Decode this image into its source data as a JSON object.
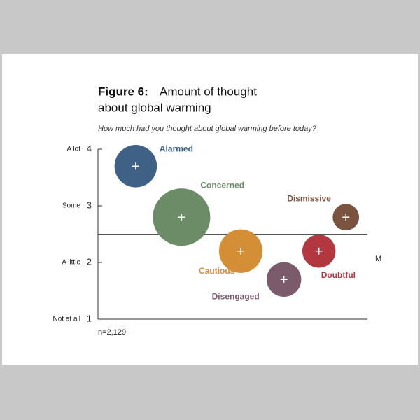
{
  "chart_data": {
    "type": "bubble",
    "title_prefix": "Figure 6:",
    "title": "Amount of thought",
    "title_line2": "about global warming",
    "subtitle": "How much had you thought about global warming before today?",
    "note": "n=2,129",
    "reference_line": 2.5,
    "reference_label": "M",
    "ylim": [
      1,
      4
    ],
    "yticks": [
      1,
      2,
      3,
      4
    ],
    "ytick_names": [
      "Not at all",
      "A little",
      "Some",
      "A lot"
    ],
    "xlim": [
      0,
      10
    ],
    "series": [
      {
        "name": "Alarmed",
        "color": "#3f6185",
        "x": [
          1.4
        ],
        "values": [
          3.7
        ],
        "sizes": [
          18
        ]
      },
      {
        "name": "Concerned",
        "color": "#6b8c67",
        "x": [
          3.1
        ],
        "values": [
          2.8
        ],
        "sizes": [
          33
        ]
      },
      {
        "name": "Cautious",
        "color": "#d48f36",
        "x": [
          5.3
        ],
        "values": [
          2.2
        ],
        "sizes": [
          19
        ]
      },
      {
        "name": "Disengaged",
        "color": "#7a5a6b",
        "x": [
          6.9
        ],
        "values": [
          1.7
        ],
        "sizes": [
          12
        ]
      },
      {
        "name": "Doubtful",
        "color": "#b3373e",
        "x": [
          8.2
        ],
        "values": [
          2.2
        ],
        "sizes": [
          11
        ]
      },
      {
        "name": "Dismissive",
        "color": "#7b5440",
        "x": [
          9.2
        ],
        "values": [
          2.8
        ],
        "sizes": [
          7
        ]
      }
    ]
  }
}
